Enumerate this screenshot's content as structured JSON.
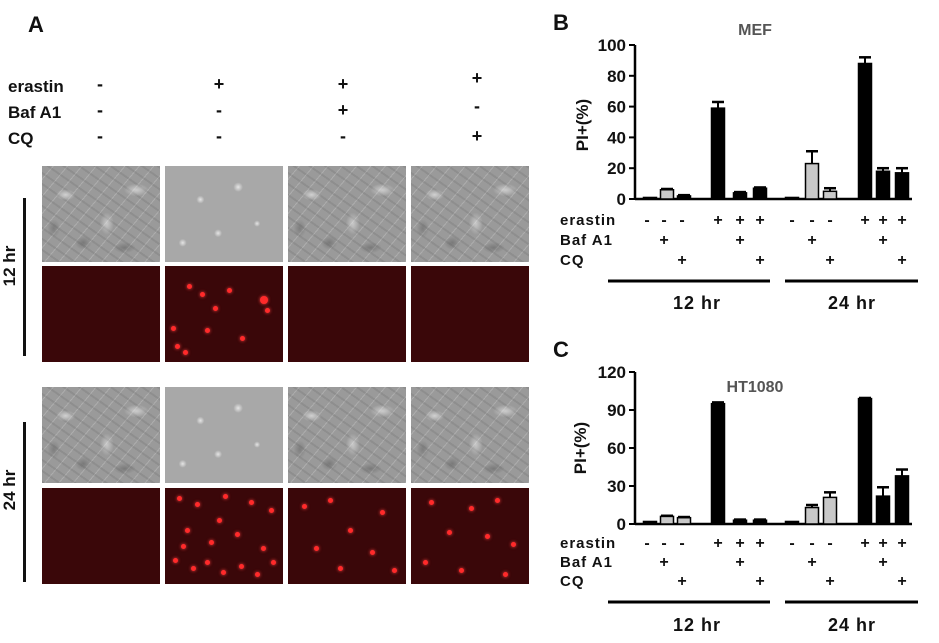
{
  "panel_a": {
    "letter": "A",
    "rows": [
      {
        "label": "erastin",
        "signs": [
          "-",
          "+",
          "+",
          "+"
        ]
      },
      {
        "label": "Baf A1",
        "signs": [
          "-",
          "-",
          "+",
          "-"
        ]
      },
      {
        "label": "CQ",
        "signs": [
          "-",
          "-",
          "-",
          "+"
        ]
      }
    ],
    "time_labels": [
      "12 hr",
      "24 hr"
    ]
  },
  "chart_data": [
    {
      "type": "bar",
      "panel": "B",
      "title": "MEF",
      "ylabel": "PI+(%)",
      "ylim": [
        0,
        100
      ],
      "yticks": [
        0,
        20,
        40,
        60,
        80,
        100
      ],
      "values": [
        1,
        6,
        2,
        59,
        4,
        7,
        1,
        23,
        5,
        88,
        18,
        17
      ],
      "errors": [
        0,
        0.5,
        0.5,
        4,
        0.5,
        0.5,
        0,
        8,
        2,
        4,
        2,
        3
      ],
      "colors": [
        "#000000",
        "#c8c8c8",
        "#000000",
        "#000000",
        "#000000",
        "#000000",
        "#000000",
        "#c8c8c8",
        "#c8c8c8",
        "#000000",
        "#000000",
        "#000000"
      ],
      "treatments": [
        {
          "label": "erastin",
          "signs": [
            "-",
            "-",
            "-",
            "+",
            "+",
            "+",
            "-",
            "-",
            "-",
            "+",
            "+",
            "+"
          ]
        },
        {
          "label": "Baf A1",
          "signs": [
            "",
            "+",
            "",
            "",
            "+",
            "",
            "",
            "+",
            "",
            "",
            "+",
            ""
          ]
        },
        {
          "label": "CQ",
          "signs": [
            "",
            "",
            "+",
            "",
            "",
            "+",
            "",
            "",
            "+",
            "",
            "",
            "+"
          ]
        }
      ],
      "groups": [
        "12 hr",
        "24 hr"
      ]
    },
    {
      "type": "bar",
      "panel": "C",
      "title": "HT1080",
      "ylabel": "PI+(%)",
      "ylim": [
        0,
        120
      ],
      "yticks": [
        0,
        30,
        60,
        90,
        120
      ],
      "values": [
        2,
        6,
        5,
        95,
        3,
        3,
        2,
        13,
        21,
        99,
        22,
        38
      ],
      "errors": [
        0,
        0.5,
        0.5,
        1,
        0.5,
        0.5,
        0,
        2,
        4,
        0.5,
        7,
        5
      ],
      "colors": [
        "#000000",
        "#c8c8c8",
        "#c8c8c8",
        "#000000",
        "#000000",
        "#000000",
        "#000000",
        "#c8c8c8",
        "#c8c8c8",
        "#000000",
        "#000000",
        "#000000"
      ],
      "treatments": [
        {
          "label": "erastin",
          "signs": [
            "-",
            "-",
            "-",
            "+",
            "+",
            "+",
            "-",
            "-",
            "-",
            "+",
            "+",
            "+"
          ]
        },
        {
          "label": "Baf A1",
          "signs": [
            "",
            "+",
            "",
            "",
            "+",
            "",
            "",
            "+",
            "",
            "",
            "+",
            ""
          ]
        },
        {
          "label": "CQ",
          "signs": [
            "",
            "",
            "+",
            "",
            "",
            "+",
            "",
            "",
            "+",
            "",
            "",
            "+"
          ]
        }
      ],
      "groups": [
        "12 hr",
        "24 hr"
      ]
    }
  ]
}
